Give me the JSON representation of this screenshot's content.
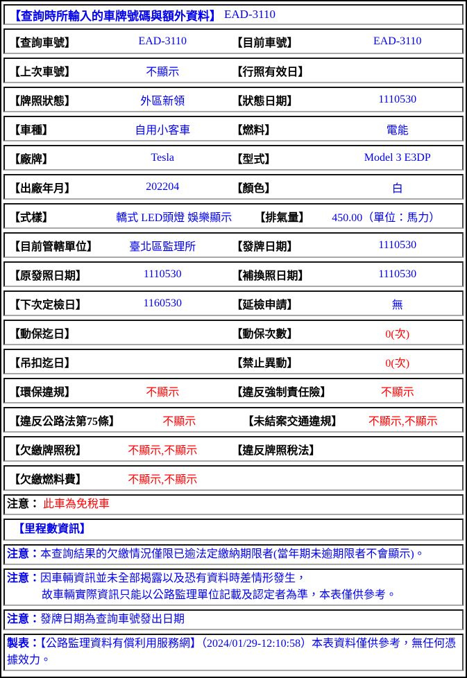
{
  "colors": {
    "value_blue": "#0000ee",
    "alert_red": "#ff0000",
    "label_black": "#000000",
    "border_dark": "#141414",
    "border_light": "#a8a8a8"
  },
  "title": {
    "label": "【查詢時所輸入的車牌號碼與額外資料】",
    "value": "EAD-3110"
  },
  "rows": [
    {
      "l1": "【查詢車號】",
      "v1": "EAD-3110",
      "l2": "【目前車號】",
      "v2": "EAD-3110"
    },
    {
      "l1": "【上次車號】",
      "v1": "不顯示",
      "l2": "【行照有效日】",
      "v2": ""
    },
    {
      "l1": "【牌照狀態】",
      "v1": "外區新領",
      "l2": "【狀態日期】",
      "v2": "1110530"
    },
    {
      "l1": "【車種】",
      "v1": "自用小客車",
      "l2": "【燃料】",
      "v2": "電能"
    },
    {
      "l1": "【廠牌】",
      "v1": "Tesla",
      "l2": "【型式】",
      "v2": "Model 3 E3DP"
    },
    {
      "l1": "【出廠年月】",
      "v1": "202204",
      "l2": "【顏色】",
      "v2": "白"
    },
    {
      "l1": "【式樣】",
      "v1": "轎式 LED頭燈 娛樂顯示",
      "l2": "【排氣量】",
      "v2": "450.00（單位：馬力）"
    },
    {
      "l1": "【目前管轄單位】",
      "v1": "臺北區監理所",
      "l2": "【發牌日期】",
      "v2": "1110530"
    },
    {
      "l1": "【原發照日期】",
      "v1": "1110530",
      "l2": "【補換照日期】",
      "v2": "1110530"
    },
    {
      "l1": "【下次定檢日】",
      "v1": "1160530",
      "l2": "【延檢申請】",
      "v2": "無"
    },
    {
      "l1": "【動保迄日】",
      "v1": "",
      "l2": "【動保次數】",
      "v2": "0(次)"
    },
    {
      "l1": "【吊扣迄日】",
      "v1": "",
      "l2": "【禁止異動】",
      "v2": "0(次)"
    },
    {
      "l1": "【環保違規】",
      "v1": "不顯示",
      "l2": "【違反強制責任險】",
      "v2": "不顯示"
    },
    {
      "l1": "【違反公路法第75條】",
      "v1": "不顯示",
      "l2": "【未結案交通違規】",
      "v2": "不顯示,不顯示"
    },
    {
      "l1": "【欠繳牌照稅】",
      "v1": "不顯示,不顯示",
      "l2": "【違反牌照稅法】",
      "v2": ""
    },
    {
      "l1": "【欠繳燃料費】",
      "v1": "不顯示,不顯示",
      "l2": "",
      "v2": ""
    }
  ],
  "tax_note": {
    "label": "注意：",
    "value": "此車為免稅車"
  },
  "mileage_header": "【里程數資訊】",
  "notes": {
    "overdue": {
      "label": "注意：",
      "text": "本查詢結果的欠繳情況僅限已逾法定繳納期限者(當年期未逾期限者不會顯示)。"
    },
    "disclosure": {
      "label": "注意：",
      "line1": "因車輛資訊並未全部揭露以及恐有資料時差情形發生，",
      "line2": "故車輛實際資訊只能以公路監理單位記載及認定者為準，本表僅供參考。"
    },
    "plate_date": {
      "label": "注意：",
      "text": "發牌日期為查詢車號發出日期"
    }
  },
  "footer": {
    "label": "製表：",
    "text": "【公路監理資料有償利用服務網】（2024/01/29-12:10:58）本表資料僅供參考，無任何憑據效力。"
  }
}
